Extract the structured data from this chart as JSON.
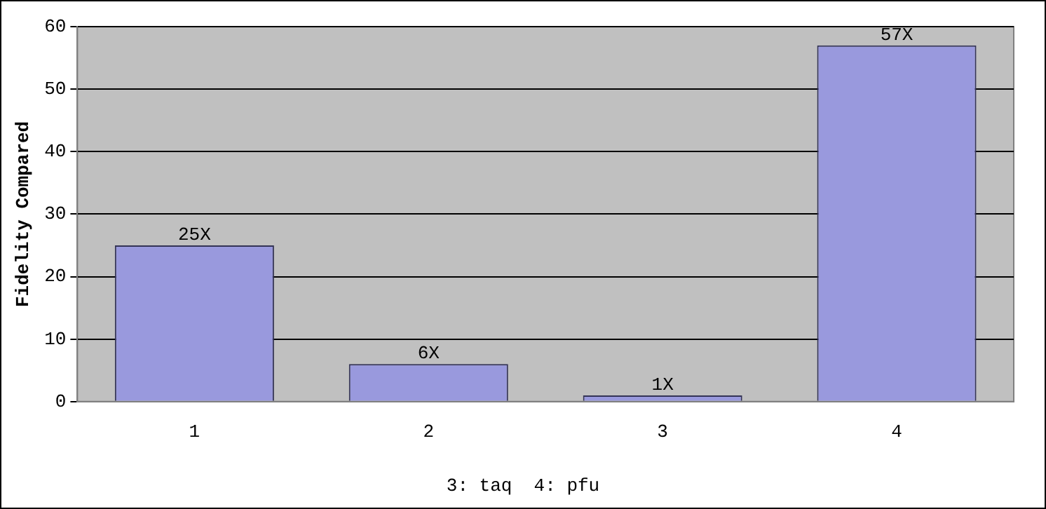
{
  "chart_data": {
    "type": "bar",
    "ylabel": "Fidelity Compared",
    "categories": [
      "1",
      "2",
      "3",
      "4"
    ],
    "values": [
      25,
      6,
      1,
      57
    ],
    "value_labels": [
      "25X",
      "6X",
      "1X",
      "57X"
    ],
    "color": "#9999dd",
    "ylim": [
      0,
      60
    ],
    "yticks": [
      0,
      10,
      20,
      30,
      40,
      50,
      60
    ],
    "grid": "y",
    "legend": false,
    "annotations": [
      "3: taq  4: pfu"
    ]
  }
}
